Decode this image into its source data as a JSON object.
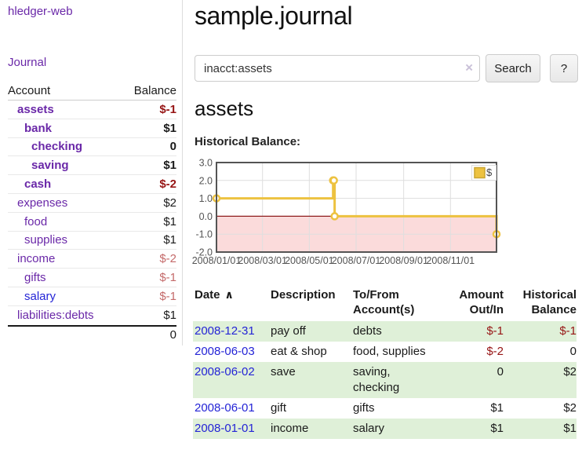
{
  "app": {
    "title": "hledger-web"
  },
  "colors": {
    "link_purple": "#6a28a8",
    "link_blue": "#2424d6",
    "negative_strong": "#961414",
    "negative_soft": "#c46a6a",
    "row_green": "#dff0d8",
    "button_bg": "#eeeeee",
    "button_border": "#cccccc",
    "divider": "#dddddd",
    "chart_line": "#edc240",
    "chart_negative_fill": "#fbdbdb",
    "zero_line": "#8f1f1f",
    "chart_border": "#545454",
    "grid_line": "#dedede",
    "tick_text": "#545454"
  },
  "sidebar": {
    "journal_label": "Journal",
    "accounts_table": {
      "headers": {
        "account": "Account",
        "balance": "Balance"
      },
      "rows": [
        {
          "name": "assets",
          "balance": "$-1",
          "depth": 0,
          "emph": true,
          "link_tone": "purple",
          "balance_tone": "neg-strong"
        },
        {
          "name": "bank",
          "balance": "$1",
          "depth": 1,
          "emph": true,
          "link_tone": "purple",
          "balance_tone": "normal"
        },
        {
          "name": "checking",
          "balance": "0",
          "depth": 2,
          "emph": true,
          "link_tone": "purple",
          "balance_tone": "normal"
        },
        {
          "name": "saving",
          "balance": "$1",
          "depth": 2,
          "emph": true,
          "link_tone": "purple",
          "balance_tone": "normal"
        },
        {
          "name": "cash",
          "balance": "$-2",
          "depth": 1,
          "emph": true,
          "link_tone": "purple",
          "balance_tone": "neg-strong"
        },
        {
          "name": "expenses",
          "balance": "$2",
          "depth": 0,
          "emph": false,
          "link_tone": "purple",
          "balance_tone": "normal"
        },
        {
          "name": "food",
          "balance": "$1",
          "depth": 1,
          "emph": false,
          "link_tone": "purple",
          "balance_tone": "normal"
        },
        {
          "name": "supplies",
          "balance": "$1",
          "depth": 1,
          "emph": false,
          "link_tone": "purple",
          "balance_tone": "normal"
        },
        {
          "name": "income",
          "balance": "$-2",
          "depth": 0,
          "emph": false,
          "link_tone": "purple",
          "balance_tone": "neg-soft"
        },
        {
          "name": "gifts",
          "balance": "$-1",
          "depth": 1,
          "emph": false,
          "link_tone": "purple",
          "balance_tone": "neg-soft"
        },
        {
          "name": "salary",
          "balance": "$-1",
          "depth": 1,
          "emph": false,
          "link_tone": "blue",
          "balance_tone": "neg-soft"
        },
        {
          "name": "liabilities:debts",
          "balance": "$1",
          "depth": 0,
          "emph": false,
          "link_tone": "purple",
          "balance_tone": "normal"
        }
      ],
      "total": "0"
    }
  },
  "main": {
    "title": "sample.journal",
    "search": {
      "value": "inacct:assets",
      "clear_icon": "×",
      "button_label": "Search",
      "help_label": "?"
    },
    "account_heading": "assets",
    "chart_label": "Historical Balance:"
  },
  "chart_data": {
    "type": "line",
    "step": true,
    "title": "Historical Balance",
    "x_range": [
      "2008-01-01",
      "2008-12-31"
    ],
    "ylim": [
      -2,
      3
    ],
    "y_ticks": [
      "3.0",
      "2.0",
      "1.0",
      "0.0",
      "-1.0",
      "-2.0"
    ],
    "x_ticks": [
      {
        "date": "2008-01-01",
        "label": "2008/01/01"
      },
      {
        "date": "2008-03-01",
        "label": "2008/03/01"
      },
      {
        "date": "2008-05-01",
        "label": "2008/05/01"
      },
      {
        "date": "2008-07-01",
        "label": "2008/07/01"
      },
      {
        "date": "2008-09-01",
        "label": "2008/09/01"
      },
      {
        "date": "2008-11-01",
        "label": "2008/11/01"
      }
    ],
    "series": [
      {
        "name": "$",
        "color": "#edc240",
        "points": [
          {
            "date": "2008-01-01",
            "value": 1
          },
          {
            "date": "2008-06-01",
            "value": 2
          },
          {
            "date": "2008-06-02",
            "value": 2
          },
          {
            "date": "2008-06-03",
            "value": 0
          },
          {
            "date": "2008-12-31",
            "value": -1
          }
        ]
      }
    ],
    "legend": {
      "label": "$",
      "position": "top-right"
    },
    "grid": true,
    "zero_line": true,
    "negative_region_shaded": true
  },
  "register": {
    "headers": {
      "date": "Date",
      "sort_icon": "∧",
      "description": "Description",
      "accounts": "To/From Account(s)",
      "amount": "Amount Out/In",
      "balance": "Historical Balance"
    },
    "rows": [
      {
        "date": "2008-12-31",
        "description": "pay off",
        "accounts": "debts",
        "amount": "$-1",
        "amount_tone": "neg-strong",
        "balance": "$-1",
        "balance_tone": "neg-strong",
        "shaded": true
      },
      {
        "date": "2008-06-03",
        "description": "eat & shop",
        "accounts": "food, supplies",
        "amount": "$-2",
        "amount_tone": "neg-strong",
        "balance": "0",
        "balance_tone": "normal",
        "shaded": false
      },
      {
        "date": "2008-06-02",
        "description": "save",
        "accounts": "saving, checking",
        "amount": "0",
        "amount_tone": "normal",
        "balance": "$2",
        "balance_tone": "normal",
        "shaded": true
      },
      {
        "date": "2008-06-01",
        "description": "gift",
        "accounts": "gifts",
        "amount": "$1",
        "amount_tone": "normal",
        "balance": "$2",
        "balance_tone": "normal",
        "shaded": false
      },
      {
        "date": "2008-01-01",
        "description": "income",
        "accounts": "salary",
        "amount": "$1",
        "amount_tone": "normal",
        "balance": "$1",
        "balance_tone": "normal",
        "shaded": true
      }
    ]
  }
}
